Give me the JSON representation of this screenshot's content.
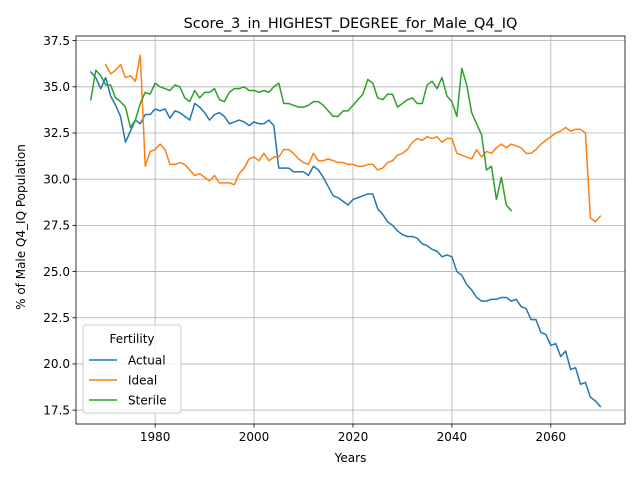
{
  "chart_data": {
    "type": "line",
    "title": "Score_3_in_HIGHEST_DEGREE_for_Male_Q4_IQ",
    "xlabel": "Years",
    "ylabel": "% of Male Q4_IQ Population",
    "xlim": [
      1964,
      2075
    ],
    "ylim": [
      16.75,
      37.75
    ],
    "xticks": [
      1980,
      2000,
      2020,
      2040,
      2060
    ],
    "yticks": [
      17.5,
      20.0,
      22.5,
      25.0,
      27.5,
      30.0,
      32.5,
      35.0,
      37.5
    ],
    "grid": true,
    "legend": {
      "title": "Fertility",
      "position": "lower-left"
    },
    "series": [
      {
        "name": "Actual",
        "color": "#1f77b4",
        "x": [
          1967,
          1968,
          1969,
          1970,
          1971,
          1972,
          1973,
          1974,
          1975,
          1976,
          1977,
          1978,
          1979,
          1980,
          1981,
          1982,
          1983,
          1984,
          1985,
          1986,
          1987,
          1988,
          1989,
          1990,
          1991,
          1992,
          1993,
          1994,
          1995,
          1996,
          1997,
          1998,
          1999,
          2000,
          2001,
          2002,
          2003,
          2004,
          2005,
          2006,
          2007,
          2008,
          2009,
          2010,
          2011,
          2012,
          2013,
          2014,
          2015,
          2016,
          2017,
          2018,
          2019,
          2020,
          2021,
          2022,
          2023,
          2024,
          2025,
          2026,
          2027,
          2028,
          2029,
          2030,
          2031,
          2032,
          2033,
          2034,
          2035,
          2036,
          2037,
          2038,
          2039,
          2040,
          2041,
          2042,
          2043,
          2044,
          2045,
          2046,
          2047,
          2048,
          2049,
          2050,
          2051,
          2052,
          2053,
          2054,
          2055,
          2056,
          2057,
          2058,
          2059,
          2060,
          2061,
          2062,
          2063,
          2064,
          2065,
          2066,
          2067,
          2068,
          2069,
          2070
        ],
        "y": [
          35.8,
          35.5,
          34.9,
          35.5,
          34.5,
          34.0,
          33.4,
          32.0,
          32.6,
          33.2,
          33.0,
          33.5,
          33.5,
          33.8,
          33.7,
          33.8,
          33.3,
          33.7,
          33.6,
          33.4,
          33.2,
          34.1,
          33.9,
          33.6,
          33.2,
          33.5,
          33.6,
          33.4,
          33.0,
          33.1,
          33.2,
          33.1,
          32.9,
          33.1,
          33.0,
          33.0,
          33.2,
          32.9,
          30.6,
          30.6,
          30.6,
          30.4,
          30.4,
          30.4,
          30.2,
          30.7,
          30.5,
          30.1,
          29.6,
          29.1,
          29.0,
          28.8,
          28.6,
          28.9,
          29.0,
          29.1,
          29.2,
          29.2,
          28.4,
          28.1,
          27.7,
          27.5,
          27.2,
          27.0,
          26.9,
          26.9,
          26.8,
          26.5,
          26.4,
          26.2,
          26.1,
          25.8,
          25.9,
          25.8,
          25.0,
          24.8,
          24.3,
          24.0,
          23.6,
          23.4,
          23.4,
          23.5,
          23.5,
          23.6,
          23.6,
          23.4,
          23.5,
          23.1,
          23.0,
          22.4,
          22.4,
          21.7,
          21.6,
          21.0,
          21.1,
          20.4,
          20.7,
          19.7,
          19.8,
          18.9,
          19.0,
          18.2,
          18.0,
          17.7
        ]
      },
      {
        "name": "Ideal",
        "color": "#ff7f0e",
        "x": [
          1970,
          1971,
          1972,
          1973,
          1974,
          1975,
          1976,
          1977,
          1978,
          1979,
          1980,
          1981,
          1982,
          1983,
          1984,
          1985,
          1986,
          1987,
          1988,
          1989,
          1990,
          1991,
          1992,
          1993,
          1994,
          1995,
          1996,
          1997,
          1998,
          1999,
          2000,
          2001,
          2002,
          2003,
          2004,
          2005,
          2006,
          2007,
          2008,
          2009,
          2010,
          2011,
          2012,
          2013,
          2014,
          2015,
          2016,
          2017,
          2018,
          2019,
          2020,
          2021,
          2022,
          2023,
          2024,
          2025,
          2026,
          2027,
          2028,
          2029,
          2030,
          2031,
          2032,
          2033,
          2034,
          2035,
          2036,
          2037,
          2038,
          2039,
          2040,
          2041,
          2042,
          2043,
          2044,
          2045,
          2046,
          2047,
          2048,
          2049,
          2050,
          2051,
          2052,
          2053,
          2054,
          2055,
          2056,
          2057,
          2058,
          2059,
          2060,
          2061,
          2062,
          2063,
          2064,
          2065,
          2066,
          2067,
          2068,
          2069,
          2070
        ],
        "y": [
          36.2,
          35.7,
          35.9,
          36.2,
          35.5,
          35.6,
          35.3,
          36.7,
          30.7,
          31.5,
          31.6,
          31.9,
          31.6,
          30.8,
          30.8,
          30.9,
          30.8,
          30.5,
          30.2,
          30.3,
          30.1,
          29.9,
          30.2,
          29.8,
          29.8,
          29.8,
          29.7,
          30.3,
          30.6,
          31.1,
          31.2,
          31.0,
          31.4,
          31.0,
          31.2,
          31.2,
          31.6,
          31.6,
          31.4,
          31.1,
          30.9,
          30.8,
          31.4,
          31.0,
          31.0,
          31.1,
          31.0,
          30.9,
          30.9,
          30.8,
          30.8,
          30.7,
          30.7,
          30.8,
          30.8,
          30.5,
          30.6,
          30.9,
          31.0,
          31.3,
          31.4,
          31.6,
          32.0,
          32.2,
          32.1,
          32.3,
          32.2,
          32.3,
          32.0,
          32.2,
          32.2,
          31.4,
          31.3,
          31.2,
          31.1,
          31.6,
          31.2,
          31.5,
          31.4,
          31.7,
          31.9,
          31.7,
          31.9,
          31.8,
          31.7,
          31.4,
          31.4,
          31.6,
          31.9,
          32.1,
          32.3,
          32.5,
          32.6,
          32.8,
          32.6,
          32.7,
          32.7,
          32.5,
          27.9,
          27.7,
          28.0
        ]
      },
      {
        "name": "Sterile",
        "color": "#2ca02c",
        "x": [
          1967,
          1968,
          1969,
          1970,
          1971,
          1972,
          1973,
          1974,
          1975,
          1976,
          1977,
          1978,
          1979,
          1980,
          1981,
          1982,
          1983,
          1984,
          1985,
          1986,
          1987,
          1988,
          1989,
          1990,
          1991,
          1992,
          1993,
          1994,
          1995,
          1996,
          1997,
          1998,
          1999,
          2000,
          2001,
          2002,
          2003,
          2004,
          2005,
          2006,
          2007,
          2008,
          2009,
          2010,
          2011,
          2012,
          2013,
          2014,
          2015,
          2016,
          2017,
          2018,
          2019,
          2020,
          2021,
          2022,
          2023,
          2024,
          2025,
          2026,
          2027,
          2028,
          2029,
          2030,
          2031,
          2032,
          2033,
          2034,
          2035,
          2036,
          2037,
          2038,
          2039,
          2040,
          2041,
          2042,
          2043,
          2044,
          2045,
          2046,
          2047,
          2048,
          2049,
          2050,
          2051,
          2052
        ],
        "y": [
          34.3,
          35.9,
          35.6,
          35.1,
          35.1,
          34.4,
          34.2,
          33.9,
          32.8,
          33.2,
          34.1,
          34.7,
          34.6,
          35.2,
          35.0,
          34.9,
          34.8,
          35.1,
          35.0,
          34.4,
          34.2,
          34.8,
          34.4,
          34.7,
          34.7,
          34.9,
          34.3,
          34.2,
          34.7,
          34.9,
          34.9,
          35.0,
          34.8,
          34.8,
          34.7,
          34.8,
          34.7,
          35.0,
          35.2,
          34.1,
          34.1,
          34.0,
          33.9,
          33.9,
          34.0,
          34.2,
          34.2,
          34.0,
          33.7,
          33.4,
          33.4,
          33.7,
          33.7,
          34.0,
          34.3,
          34.6,
          35.4,
          35.2,
          34.4,
          34.3,
          34.6,
          34.6,
          33.9,
          34.1,
          34.3,
          34.4,
          34.1,
          34.1,
          35.1,
          35.3,
          34.9,
          35.5,
          34.5,
          34.2,
          33.4,
          36.0,
          35.1,
          33.6,
          33.0,
          32.4,
          30.5,
          30.7,
          28.9,
          30.1,
          28.6,
          28.3
        ]
      }
    ]
  }
}
